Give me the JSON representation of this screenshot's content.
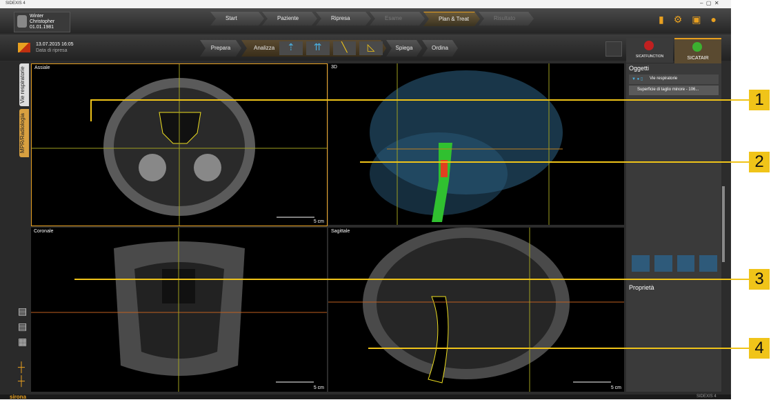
{
  "window": {
    "title": "SIDEXIS 4"
  },
  "patient": {
    "last_name": "Winter",
    "first_name": "Christopher",
    "birth_date": "01.01.1981"
  },
  "navigation": [
    "Start",
    "Paziente",
    "Ripresa",
    "Esame",
    "Plan & Treat",
    "Risultato"
  ],
  "study": {
    "date": "13.07.2015 16:05",
    "label": "Data di ripresa"
  },
  "workflow": [
    "Prepara",
    "Analizza",
    "Spiega",
    "Ordina"
  ],
  "side_tabs": [
    "Vie respiratorie",
    "MPR/Radiologia"
  ],
  "views": [
    {
      "title": "Assiale",
      "scale": "5 cm"
    },
    {
      "title": "3D"
    },
    {
      "title": "Coronale",
      "scale": "5 cm"
    },
    {
      "title": "Sagittale",
      "scale": "5 cm"
    }
  ],
  "panel": {
    "tabs": [
      "SICATFUNCTION",
      "SICATAIR"
    ],
    "objects_title": "Oggetti",
    "objects": [
      "Vie respiratorie",
      "Superficie di taglio minore - 106..."
    ],
    "properties_title": "Proprietà"
  },
  "footer": {
    "brand": "sirona",
    "product": "SIDEXIS 4"
  },
  "callouts": [
    "1",
    "2",
    "3",
    "4"
  ]
}
